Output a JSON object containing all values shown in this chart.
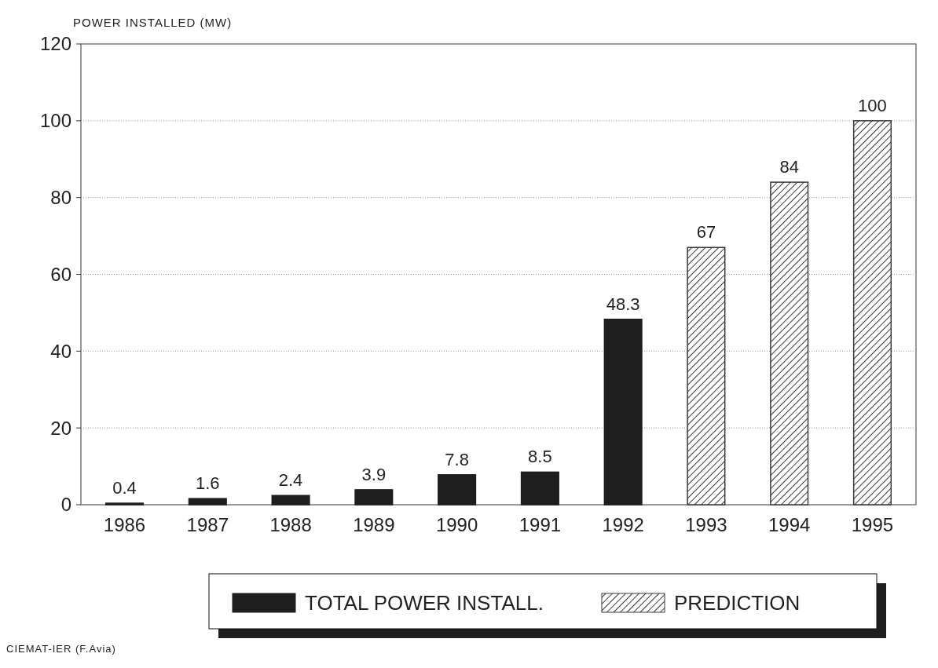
{
  "chart_data": {
    "type": "bar",
    "ylabel": "POWER INSTALLED (MW)",
    "categories": [
      "1986",
      "1987",
      "1988",
      "1989",
      "1990",
      "1991",
      "1992",
      "1993",
      "1994",
      "1995"
    ],
    "series": [
      {
        "name": "TOTAL POWER INSTALL.",
        "color": "#1e1e1e",
        "values": [
          0.4,
          1.6,
          2.4,
          3.9,
          7.8,
          8.5,
          48.3,
          null,
          null,
          null
        ]
      },
      {
        "name": "PREDICTION",
        "color": "#3a3a3a",
        "values": [
          null,
          null,
          null,
          null,
          null,
          null,
          null,
          67,
          84,
          100
        ]
      }
    ],
    "ylim": [
      0,
      120
    ],
    "yticks": [
      0,
      20,
      40,
      60,
      80,
      100,
      120
    ],
    "grid": "y",
    "data_labels": true,
    "legend": "bottom",
    "annotations": [
      "CIEMAT-IER (F.Avia)"
    ]
  }
}
